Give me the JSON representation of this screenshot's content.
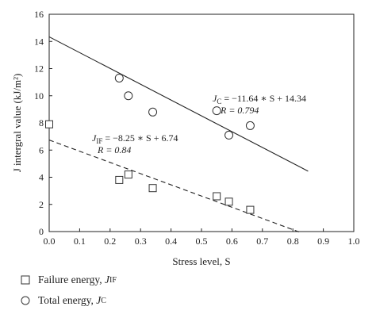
{
  "chart_data": {
    "type": "scatter",
    "xlabel": "Stress level, S",
    "ylabel": "J intergral value (kJ/m²)",
    "xlim": [
      0.0,
      1.0
    ],
    "ylim": [
      0,
      16
    ],
    "xticks": [
      "0.0",
      "0.1",
      "0.2",
      "0.3",
      "0.4",
      "0.5",
      "0.6",
      "0.7",
      "0.8",
      "0.9",
      "1.0"
    ],
    "yticks": [
      "0",
      "2",
      "4",
      "6",
      "8",
      "10",
      "12",
      "14",
      "16"
    ],
    "legend_position": "bottom",
    "series": [
      {
        "name": "Failure energy, J_IF",
        "legend_text": "Failure energy,",
        "symbol_main": "J",
        "symbol_sub": "IF",
        "marker": "square",
        "x": [
          0.0,
          0.23,
          0.26,
          0.34,
          0.55,
          0.59,
          0.66
        ],
        "y": [
          7.9,
          3.8,
          4.2,
          3.2,
          2.6,
          2.2,
          1.6
        ],
        "fit": {
          "style": "dashed",
          "x_range": [
            0.0,
            0.82
          ],
          "slope": -8.25,
          "intercept": 6.74,
          "equation_lhs_main": "J",
          "equation_lhs_sub": "IF",
          "equation_rhs": " = −8.25 ∗ S + 6.74",
          "r_text": "R = 0.84"
        }
      },
      {
        "name": "Total energy, J_C",
        "legend_text": "Total energy,",
        "symbol_main": "J",
        "symbol_sub": "C",
        "marker": "circle",
        "x": [
          0.23,
          0.26,
          0.34,
          0.55,
          0.59,
          0.66
        ],
        "y": [
          11.3,
          10.0,
          8.8,
          8.9,
          7.1,
          7.8
        ],
        "fit": {
          "style": "solid",
          "x_range": [
            0.0,
            0.85
          ],
          "slope": -11.64,
          "intercept": 14.34,
          "equation_lhs_main": "J",
          "equation_lhs_sub": "C",
          "equation_rhs": " = −11.64 ∗ S + 14.34",
          "r_text": "R = 0.794"
        }
      }
    ]
  }
}
